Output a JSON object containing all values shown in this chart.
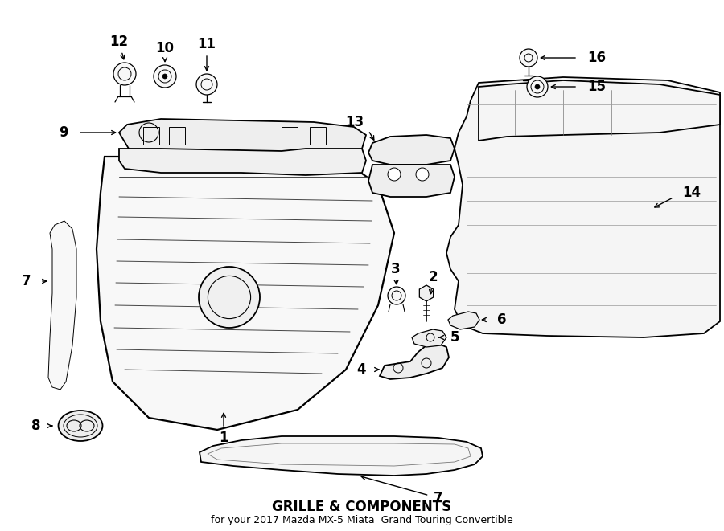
{
  "title": "GRILLE & COMPONENTS",
  "subtitle": "for your 2017 Mazda MX-5 Miata  Grand Touring Convertible",
  "bg_color": "#ffffff",
  "line_color": "#000000",
  "lw_main": 1.3,
  "lw_thin": 0.7,
  "lw_thick": 1.6,
  "label_fontsize": 12,
  "title_fontsize": 12,
  "subtitle_fontsize": 9,
  "fig_width": 9.0,
  "fig_height": 6.61,
  "dpi": 100
}
